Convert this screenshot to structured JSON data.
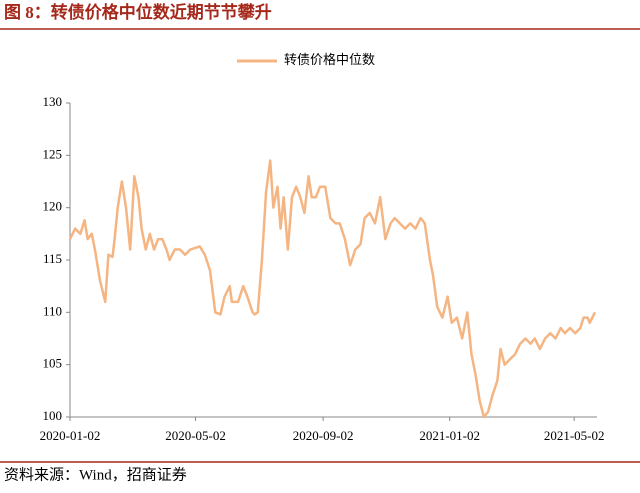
{
  "chart_data": {
    "type": "line",
    "title": "图 8：转债价格中位数近期节节攀升",
    "source": "资料来源：Wind，招商证券",
    "x": [
      "2020-01-02",
      "2020-01-07",
      "2020-01-12",
      "2020-01-16",
      "2020-01-19",
      "2020-01-23",
      "2020-01-26",
      "2020-01-31",
      "2020-02-05",
      "2020-02-08",
      "2020-02-12",
      "2020-02-14",
      "2020-02-17",
      "2020-02-21",
      "2020-02-25",
      "2020-02-29",
      "2020-03-04",
      "2020-03-08",
      "2020-03-11",
      "2020-03-15",
      "2020-03-19",
      "2020-03-23",
      "2020-03-27",
      "2020-03-31",
      "2020-04-04",
      "2020-04-07",
      "2020-04-12",
      "2020-04-17",
      "2020-04-22",
      "2020-04-27",
      "2020-05-06",
      "2020-05-11",
      "2020-05-16",
      "2020-05-21",
      "2020-05-26",
      "2020-05-30",
      "2020-06-04",
      "2020-06-06",
      "2020-06-12",
      "2020-06-17",
      "2020-06-21",
      "2020-06-26",
      "2020-06-28",
      "2020-07-01",
      "2020-07-05",
      "2020-07-09",
      "2020-07-13",
      "2020-07-16",
      "2020-07-20",
      "2020-07-23",
      "2020-07-26",
      "2020-07-30",
      "2020-08-03",
      "2020-08-07",
      "2020-08-11",
      "2020-08-15",
      "2020-08-19",
      "2020-08-22",
      "2020-08-26",
      "2020-08-30",
      "2020-09-04",
      "2020-09-09",
      "2020-09-14",
      "2020-09-18",
      "2020-09-23",
      "2020-09-28",
      "2020-10-03",
      "2020-10-08",
      "2020-10-12",
      "2020-10-17",
      "2020-10-22",
      "2020-10-27",
      "2020-11-01",
      "2020-11-06",
      "2020-11-10",
      "2020-11-15",
      "2020-11-20",
      "2020-11-25",
      "2020-11-30",
      "2020-12-05",
      "2020-12-09",
      "2020-12-14",
      "2020-12-17",
      "2020-12-21",
      "2020-12-26",
      "2020-12-31",
      "2021-01-04",
      "2021-01-09",
      "2021-01-14",
      "2021-01-19",
      "2021-01-23",
      "2021-01-27",
      "2021-01-31",
      "2021-02-04",
      "2021-02-08",
      "2021-02-12",
      "2021-02-17",
      "2021-02-20",
      "2021-02-24",
      "2021-03-01",
      "2021-03-06",
      "2021-03-11",
      "2021-03-16",
      "2021-03-21",
      "2021-03-25",
      "2021-03-30",
      "2021-04-04",
      "2021-04-09",
      "2021-04-14",
      "2021-04-19",
      "2021-04-23",
      "2021-04-28",
      "2021-05-03",
      "2021-05-08",
      "2021-05-11",
      "2021-05-15",
      "2021-05-17",
      "2021-05-22"
    ],
    "series": [
      {
        "name": "转债价格中位数",
        "color": "#f5b583",
        "values": [
          117,
          118,
          117.5,
          118.8,
          117,
          117.5,
          116,
          113,
          111,
          115.5,
          115.3,
          117,
          120,
          122.5,
          120,
          116,
          123,
          121,
          118,
          116,
          117.5,
          116,
          117,
          117,
          116,
          115,
          116,
          116,
          115.5,
          116,
          116.3,
          115.5,
          114,
          110,
          109.8,
          111.5,
          112.5,
          111,
          111,
          112.5,
          111.5,
          110,
          109.8,
          110,
          115,
          121.5,
          124.5,
          120,
          122,
          118,
          121,
          116,
          121,
          122,
          121,
          119.5,
          123,
          121,
          121,
          122,
          122,
          119,
          118.5,
          118.5,
          117,
          114.5,
          116,
          116.5,
          119,
          119.5,
          118.5,
          121,
          117,
          118.5,
          119,
          118.5,
          118,
          118.5,
          118,
          119,
          118.5,
          115,
          113.5,
          110.5,
          109.5,
          111.5,
          109,
          109.5,
          107.5,
          110,
          106,
          104,
          101.5,
          100,
          100.5,
          102,
          103.5,
          106.5,
          105,
          105.5,
          106,
          107,
          107.5,
          107,
          107.5,
          106.5,
          107.5,
          108,
          107.5,
          108.5,
          108,
          108.5,
          108,
          108.5,
          109.5,
          109.5,
          109,
          110
        ]
      }
    ],
    "xlim": [
      "2020-01-02",
      "2021-05-24"
    ],
    "xticks": [
      "2020-01-02",
      "2020-05-02",
      "2020-09-02",
      "2021-01-02",
      "2021-05-02"
    ],
    "ylim": [
      100,
      130
    ],
    "yticks": [
      100,
      105,
      110,
      115,
      120,
      125,
      130
    ],
    "grid": false,
    "legend": "top"
  }
}
